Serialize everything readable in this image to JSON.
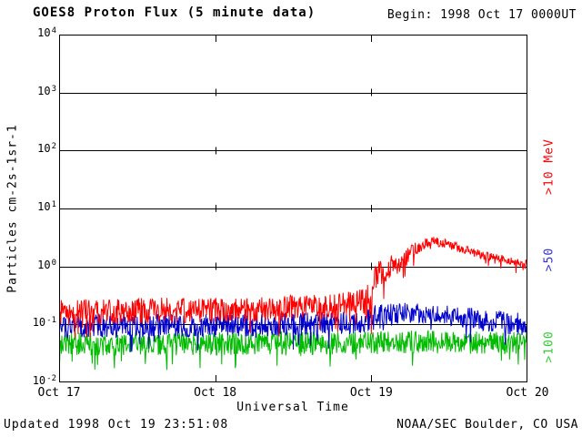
{
  "header": {
    "begin": "Begin: 1998 Oct 17 0000UT"
  },
  "footer": {
    "updated": "Updated 1998 Oct 19 23:51:08",
    "credit": "NOAA/SEC Boulder, CO USA"
  },
  "chart_data": {
    "type": "line",
    "title": "GOES8 Proton Flux (5 minute data)",
    "xlabel": "Universal Time",
    "ylabel": "Particles cm-2s-1sr-1",
    "x_ticks": [
      "Oct 17",
      "Oct 18",
      "Oct 19",
      "Oct 20"
    ],
    "x_range_days": [
      0,
      3
    ],
    "y_log_range": [
      -2,
      4
    ],
    "y_tick_base": "10",
    "y_tick_exponents": [
      "4",
      "3",
      "2",
      "1",
      "0",
      "-1",
      "-2"
    ],
    "grid": true,
    "grid_color": "#000000",
    "frame_color": "#000000",
    "points_per_day": 288,
    "legend_position": "right-rotated",
    "series": [
      {
        "name": ">10 MeV",
        "color": "#ff0000",
        "label_color": "#ff0000",
        "baseline_log10": [
          [
            0.0,
            -0.8,
            0.22
          ],
          [
            0.6,
            -0.76,
            0.22
          ],
          [
            1.2,
            -0.74,
            0.22
          ],
          [
            1.8,
            -0.68,
            0.22
          ],
          [
            1.95,
            -0.6,
            0.25
          ],
          [
            2.01,
            -0.5,
            0.3
          ],
          [
            2.03,
            -0.15,
            0.25
          ],
          [
            2.1,
            -0.02,
            0.22
          ],
          [
            2.18,
            0.05,
            0.18
          ],
          [
            2.28,
            0.3,
            0.12
          ],
          [
            2.38,
            0.44,
            0.08
          ],
          [
            2.5,
            0.38,
            0.08
          ],
          [
            2.62,
            0.27,
            0.08
          ],
          [
            2.75,
            0.17,
            0.08
          ],
          [
            2.9,
            0.08,
            0.08
          ],
          [
            3.0,
            0.03,
            0.08
          ]
        ]
      },
      {
        "name": ">50",
        "color": "#0000cc",
        "label_color": "#3333cc",
        "baseline_log10": [
          [
            0.0,
            -1.03,
            0.2
          ],
          [
            1.0,
            -1.02,
            0.2
          ],
          [
            1.9,
            -0.98,
            0.2
          ],
          [
            2.03,
            -0.88,
            0.22
          ],
          [
            2.2,
            -0.8,
            0.18
          ],
          [
            2.4,
            -0.82,
            0.16
          ],
          [
            2.6,
            -0.88,
            0.18
          ],
          [
            2.8,
            -0.95,
            0.2
          ],
          [
            3.0,
            -1.0,
            0.2
          ]
        ]
      },
      {
        "name": ">100",
        "color": "#00bb00",
        "label_color": "#33cc33",
        "baseline_log10": [
          [
            0.0,
            -1.34,
            0.2
          ],
          [
            1.0,
            -1.33,
            0.2
          ],
          [
            2.0,
            -1.32,
            0.2
          ],
          [
            2.3,
            -1.3,
            0.2
          ],
          [
            3.0,
            -1.32,
            0.2
          ]
        ]
      }
    ]
  }
}
